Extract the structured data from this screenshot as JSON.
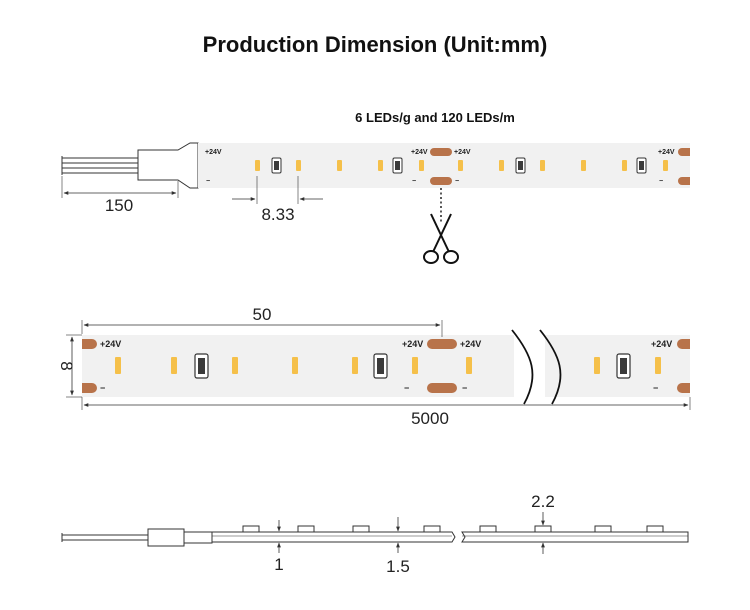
{
  "title": "Production Dimension (Unit:mm)",
  "subtitle": "6 LEDs/g and 120 LEDs/m",
  "labels": {
    "plus": "+24V",
    "minus": "−"
  },
  "dimensions": {
    "lead_length": "150",
    "led_pitch": "8.33",
    "group_length": "50",
    "strip_width": "8",
    "strip_length": "5000",
    "pcb_thickness": "1",
    "total_thickness": "1.5",
    "led_height": "2.2"
  },
  "icons": {
    "cut": "scissors-icon",
    "break": "break-mark-icon"
  },
  "colors": {
    "strip": "#f1f1f1",
    "led_amber": "#f5c04a",
    "pad_copper": "#b8734a",
    "resistor_dark": "#3a3a3a",
    "line": "#333333"
  }
}
